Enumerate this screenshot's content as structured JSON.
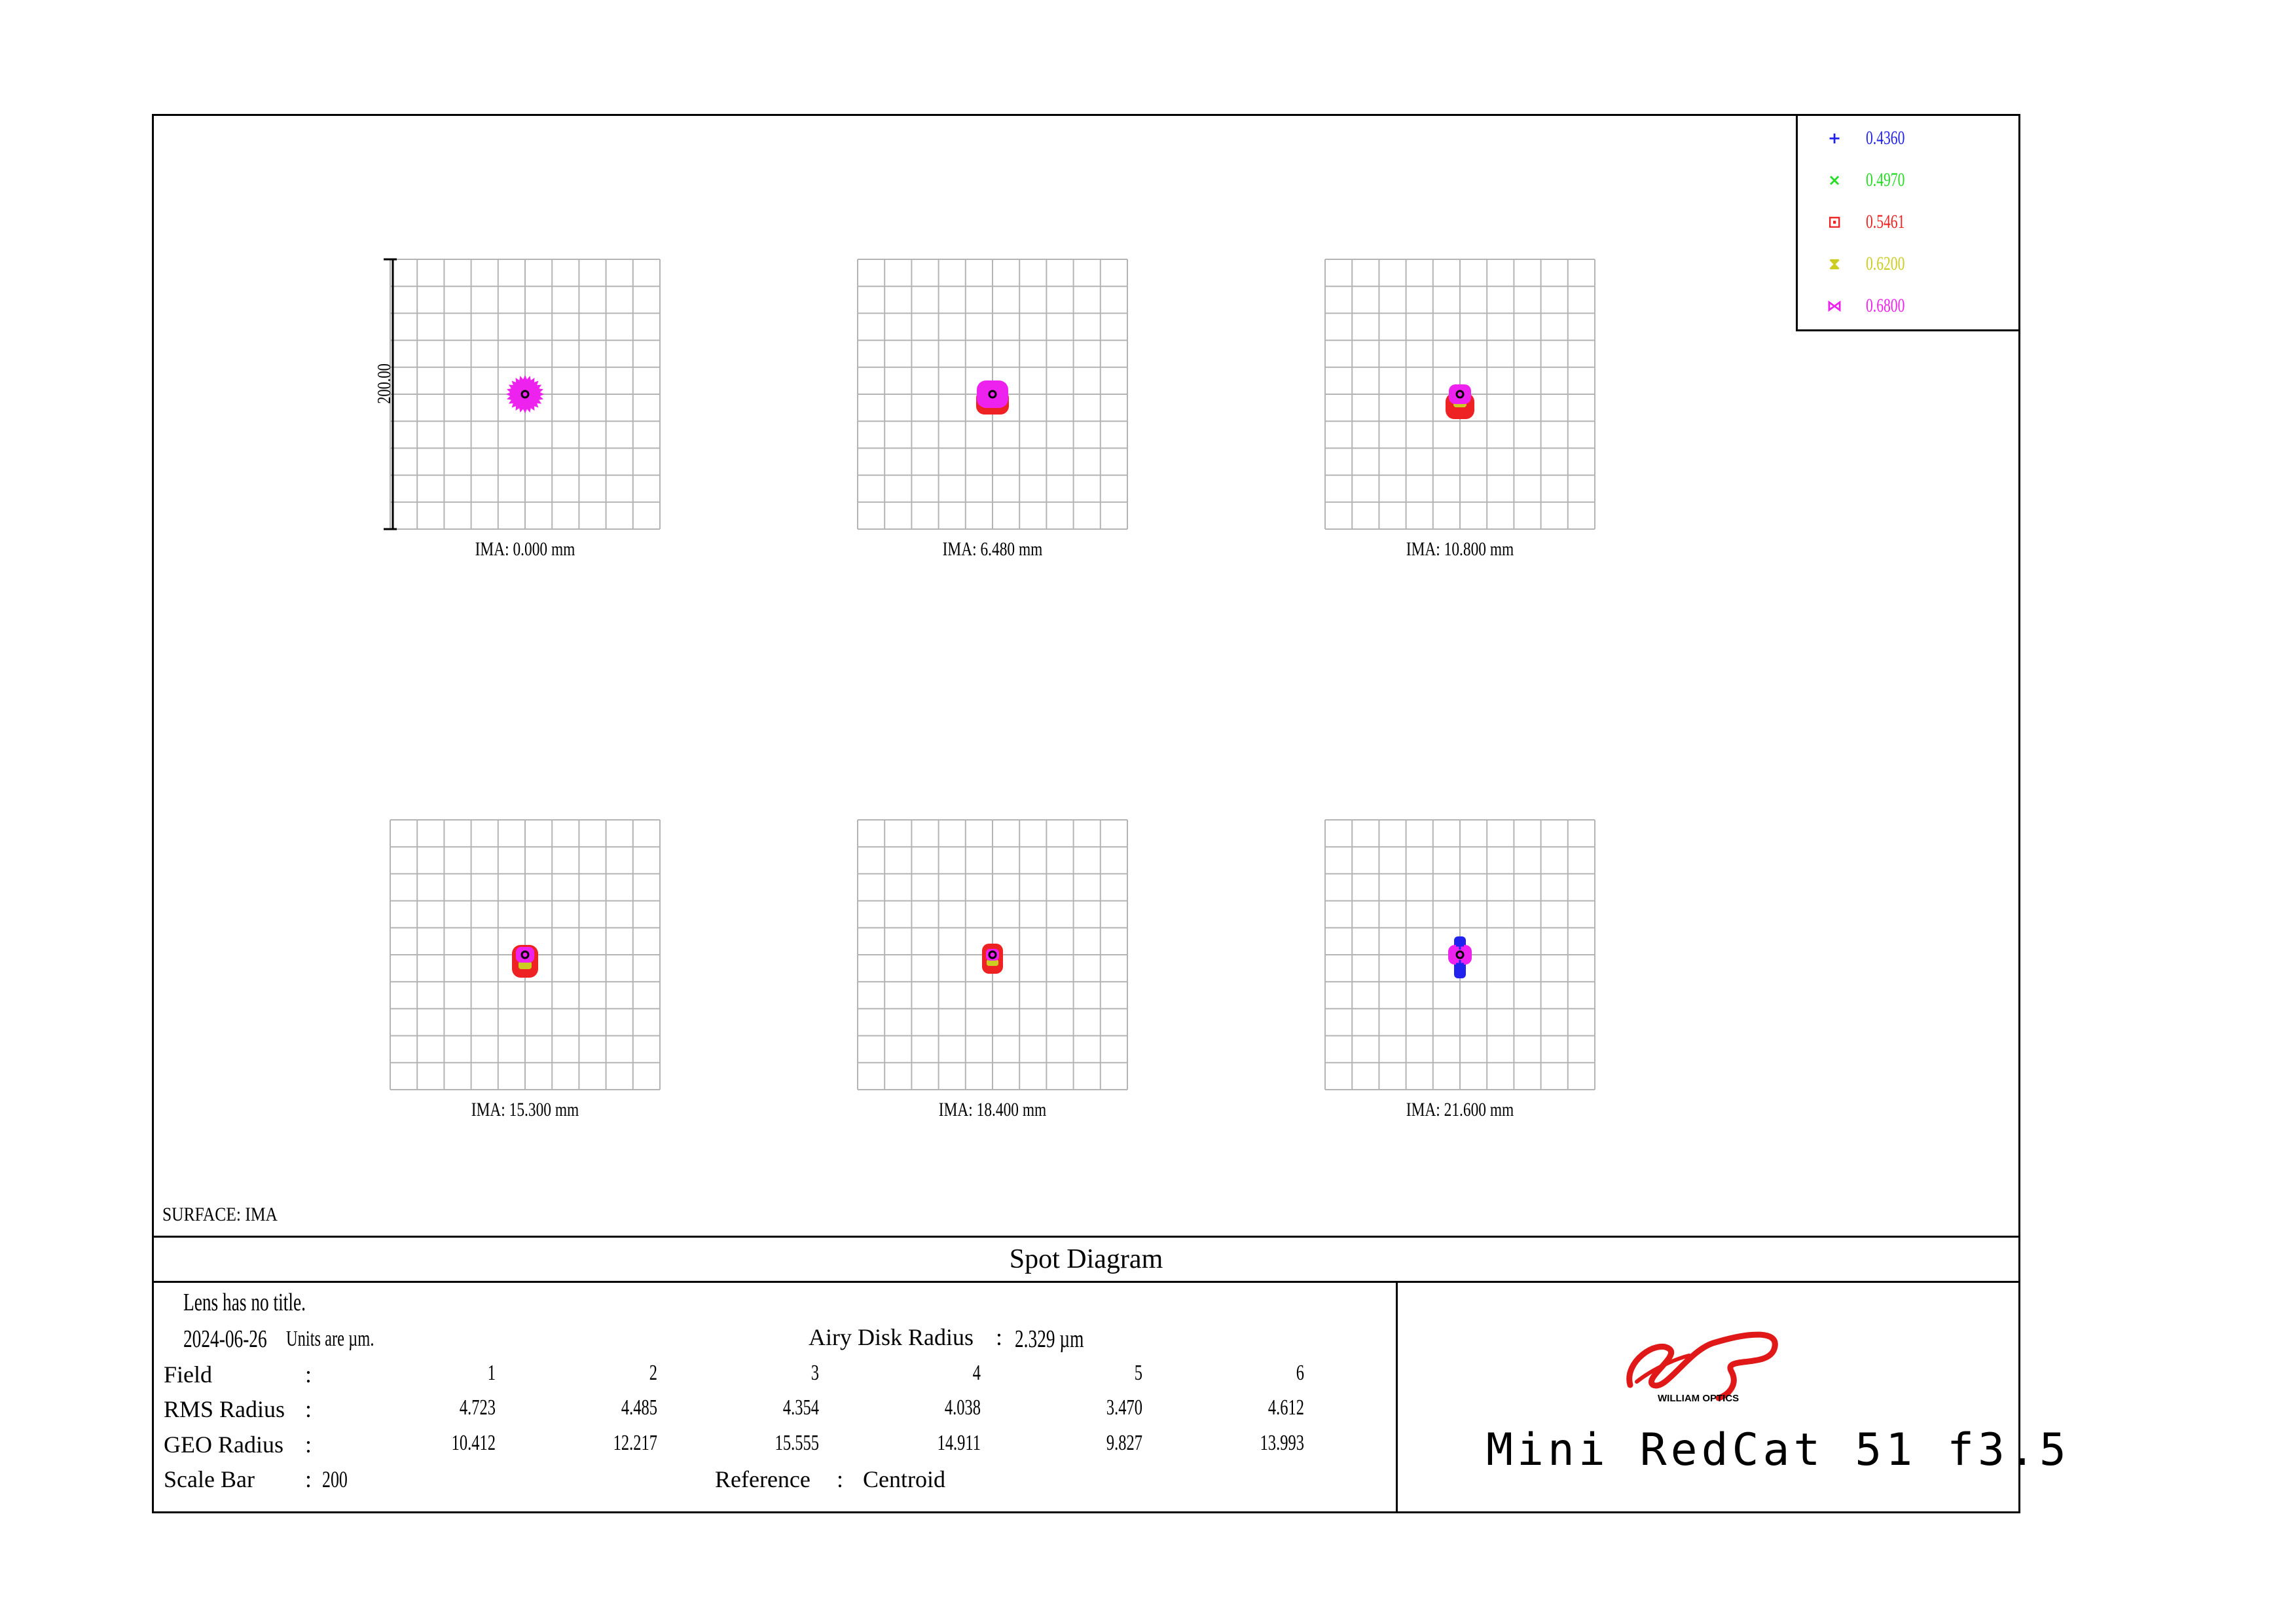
{
  "chart_data": {
    "type": "scatter",
    "title": "Spot Diagram",
    "surface_label": "SURFACE: IMA",
    "scale_bar_label": "200.00",
    "grid": true,
    "legend_placement": "top-right",
    "legend": [
      {
        "label": "0.4360",
        "symbol": "+",
        "color": "#2222ee"
      },
      {
        "label": "0.4970",
        "symbol": "×",
        "color": "#22dd22"
      },
      {
        "label": "0.5461",
        "symbol": "⊡",
        "color": "#ee2222"
      },
      {
        "label": "0.6200",
        "symbol": "⧗",
        "color": "#cccc22"
      },
      {
        "label": "0.6800",
        "symbol": "⋈",
        "color": "#ee22ee"
      }
    ],
    "fields": [
      {
        "label": "IMA:  0.000 mm"
      },
      {
        "label": "IMA:  6.480 mm"
      },
      {
        "label": "IMA:  10.800 mm"
      },
      {
        "label": "IMA:  15.300 mm"
      },
      {
        "label": "IMA:  18.400 mm"
      },
      {
        "label": "IMA:  21.600 mm"
      }
    ]
  },
  "info": {
    "lens_title": "Lens has no title.",
    "date": "2024-06-26",
    "units": "Units are µm.",
    "airy_label": "Airy Disk Radius",
    "airy_sep": ":",
    "airy_value": "2.329 µm",
    "field_label": "Field",
    "rms_label": "RMS Radius",
    "geo_label": "GEO Radius",
    "scale_label": "Scale Bar",
    "colon": ":",
    "scale_value": "200",
    "reference_label": "Reference",
    "reference_value": "Centroid",
    "field_numbers": [
      "1",
      "2",
      "3",
      "4",
      "5",
      "6"
    ],
    "rms_values": [
      "4.723",
      "4.485",
      "4.354",
      "4.038",
      "3.470",
      "4.612"
    ],
    "geo_values": [
      "10.412",
      "12.217",
      "15.555",
      "14.911",
      "9.827",
      "13.993"
    ]
  },
  "brand": {
    "logo_text": "WILLIAM OPTICS",
    "product_title": "Mini RedCat 51  f3.5"
  }
}
